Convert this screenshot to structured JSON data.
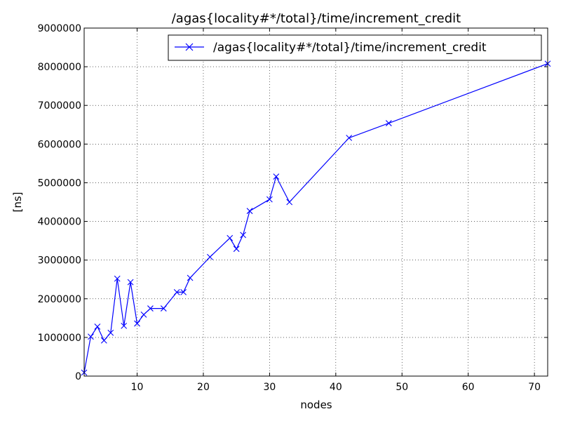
{
  "chart_data": {
    "type": "line",
    "title": "/agas{locality#*/total}/time/increment_credit",
    "xlabel": "nodes",
    "ylabel": "[ns]",
    "xlim": [
      2,
      72
    ],
    "ylim": [
      0,
      9000000
    ],
    "x_ticks": [
      10,
      20,
      30,
      40,
      50,
      60,
      70
    ],
    "y_ticks": [
      0,
      1000000,
      2000000,
      3000000,
      4000000,
      5000000,
      6000000,
      7000000,
      8000000,
      9000000
    ],
    "grid": true,
    "legend_position": "top-right",
    "series": [
      {
        "name": "/agas{locality#*/total}/time/increment_credit",
        "color": "#0000ff",
        "marker": "x",
        "x": [
          2,
          3,
          4,
          5,
          6,
          7,
          8,
          9,
          10,
          11,
          12,
          14,
          16,
          17,
          18,
          21,
          24,
          25,
          26,
          27,
          30,
          31,
          33,
          42,
          48,
          72
        ],
        "y": [
          90000,
          1020000,
          1280000,
          920000,
          1120000,
          2520000,
          1300000,
          2430000,
          1360000,
          1590000,
          1750000,
          1750000,
          2170000,
          2170000,
          2540000,
          3080000,
          3570000,
          3290000,
          3650000,
          4270000,
          4570000,
          5160000,
          4500000,
          6160000,
          6540000,
          8080000
        ]
      }
    ]
  }
}
